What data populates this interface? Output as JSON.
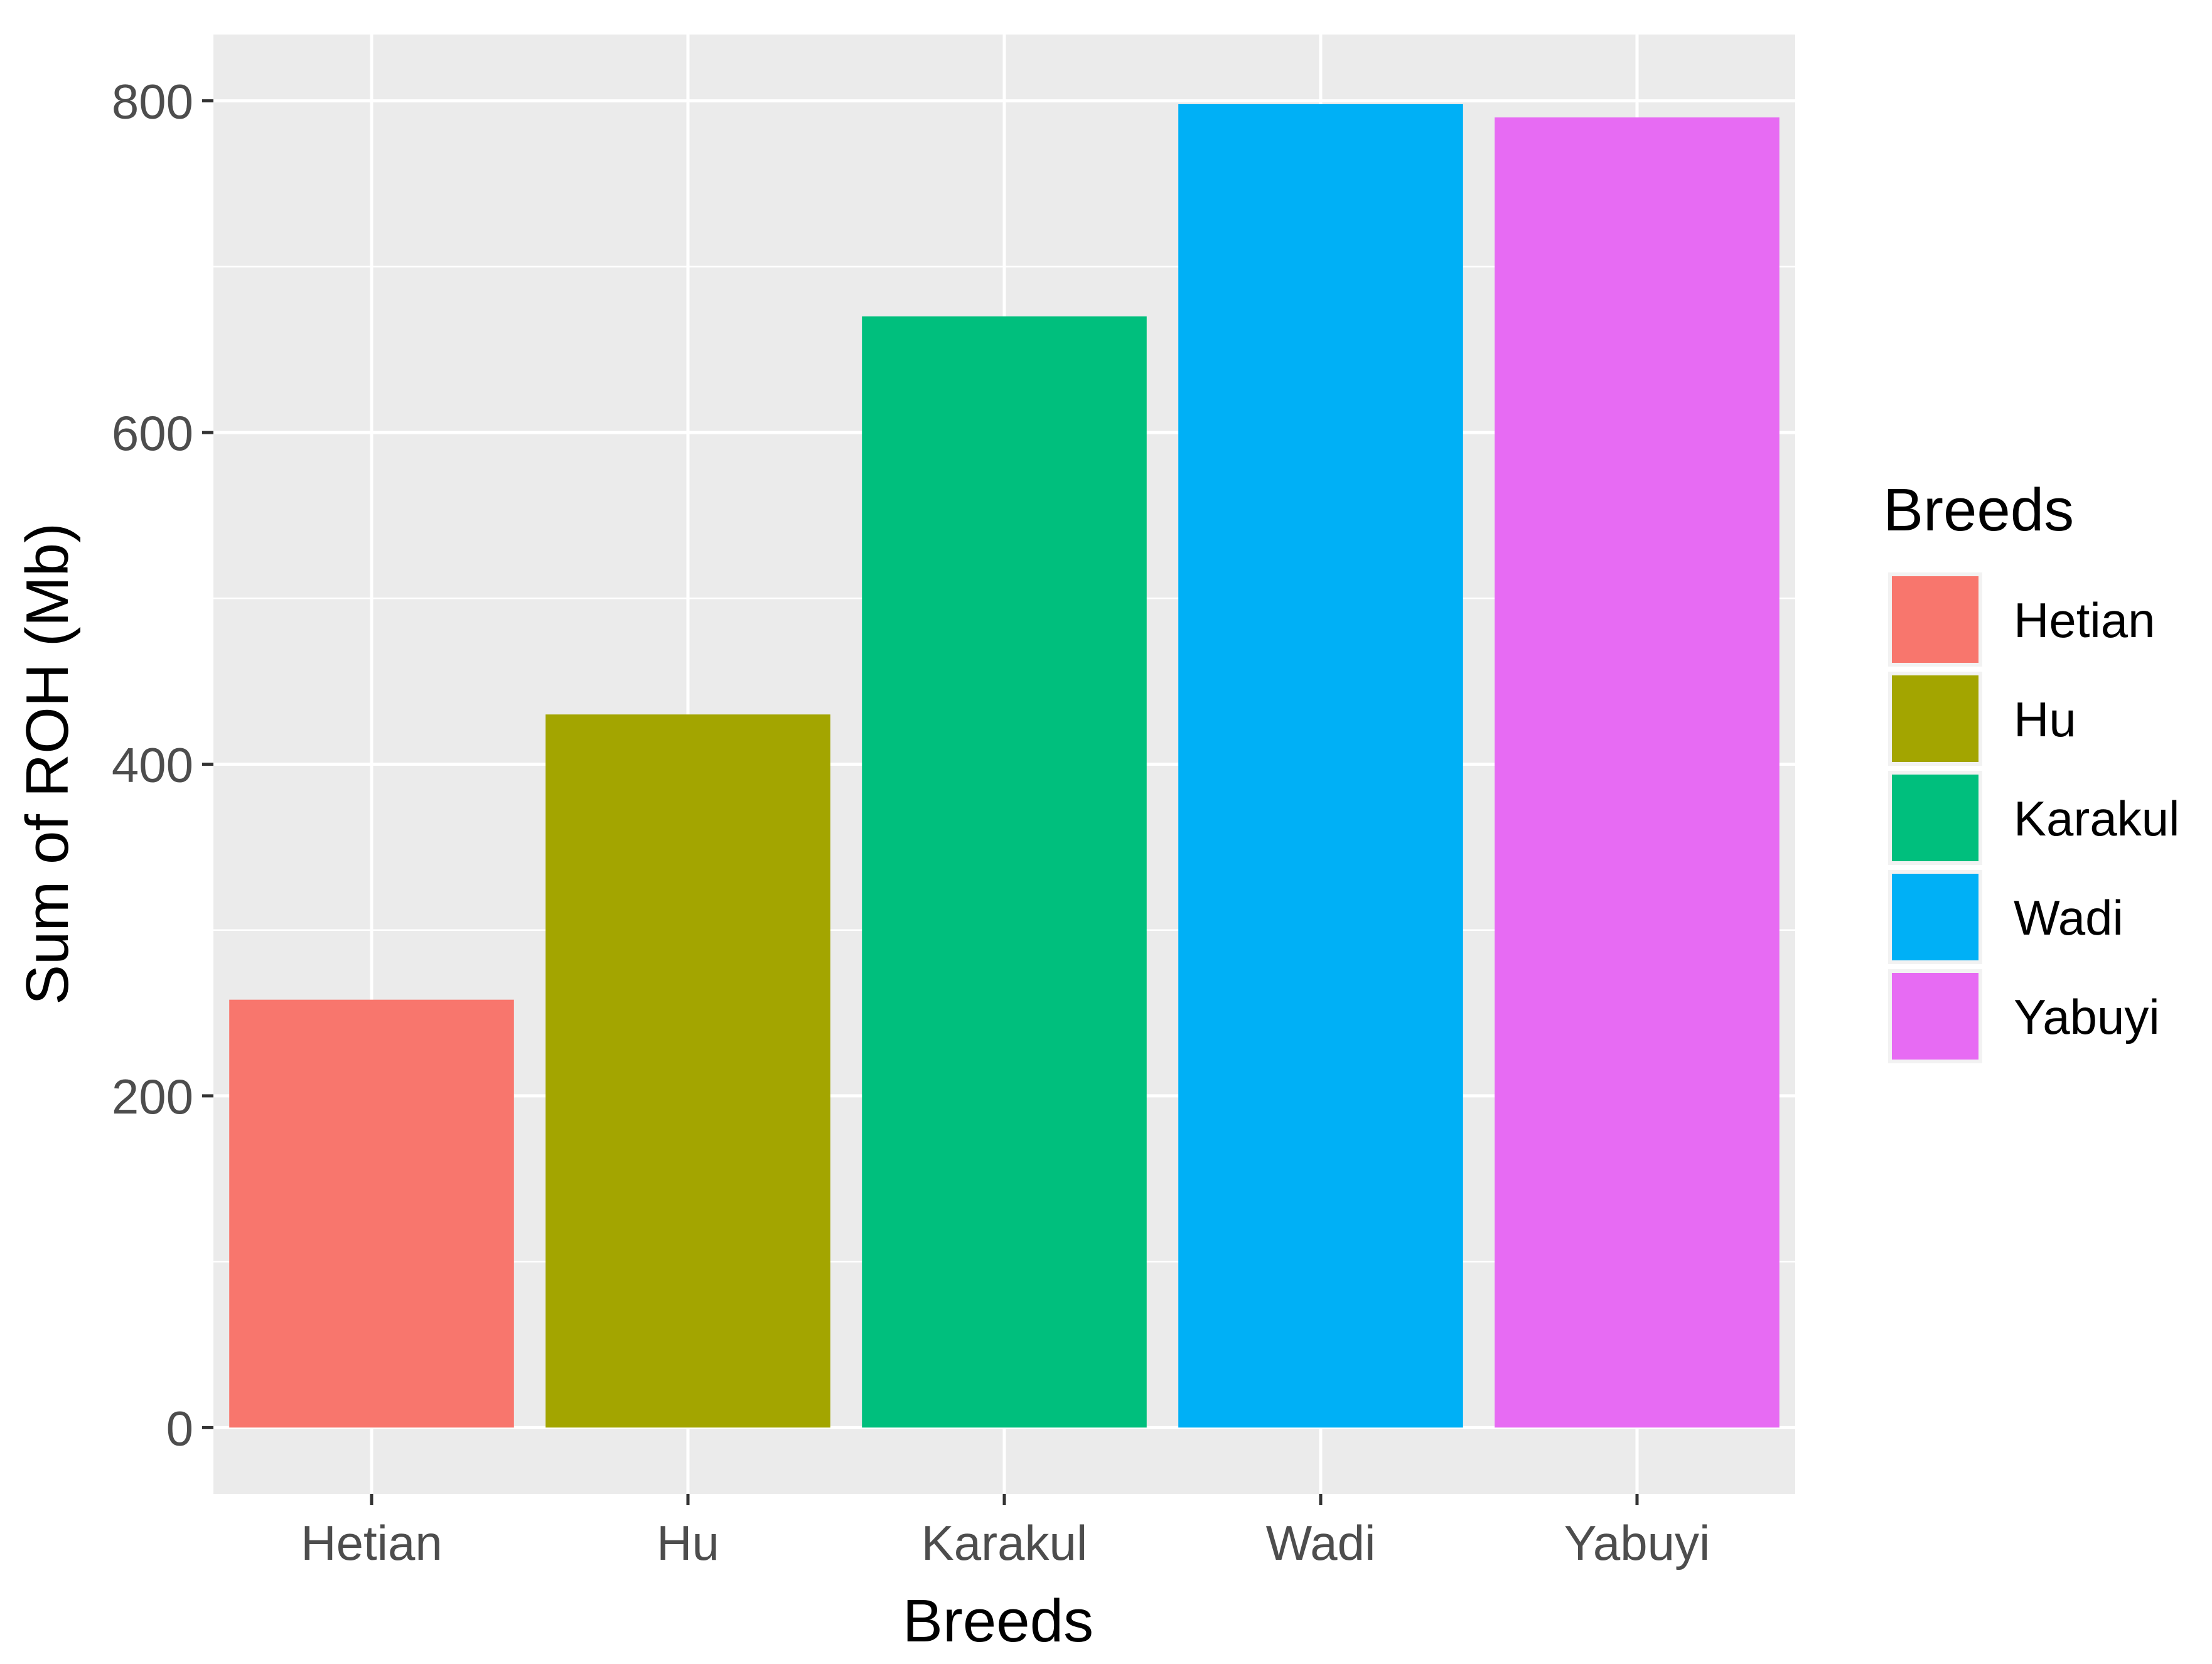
{
  "chart_data": {
    "type": "bar",
    "categories": [
      "Hetian",
      "Hu",
      "Karakul",
      "Wadi",
      "Yabuyi"
    ],
    "values": [
      258,
      430,
      670,
      798,
      790
    ],
    "colors": [
      "#F8766D",
      "#A3A500",
      "#00BF7D",
      "#00B0F6",
      "#E76BF3"
    ],
    "xlabel": "Breeds",
    "ylabel": "Sum of ROH (Mb)",
    "ylim": [
      -40,
      840
    ],
    "yticks": [
      0,
      200,
      400,
      600,
      800
    ],
    "yticks_minor": [
      100,
      300,
      500,
      700
    ],
    "grid": true,
    "legend": {
      "title": "Breeds",
      "position": "right",
      "entries": [
        "Hetian",
        "Hu",
        "Karakul",
        "Wadi",
        "Yabuyi"
      ]
    }
  }
}
